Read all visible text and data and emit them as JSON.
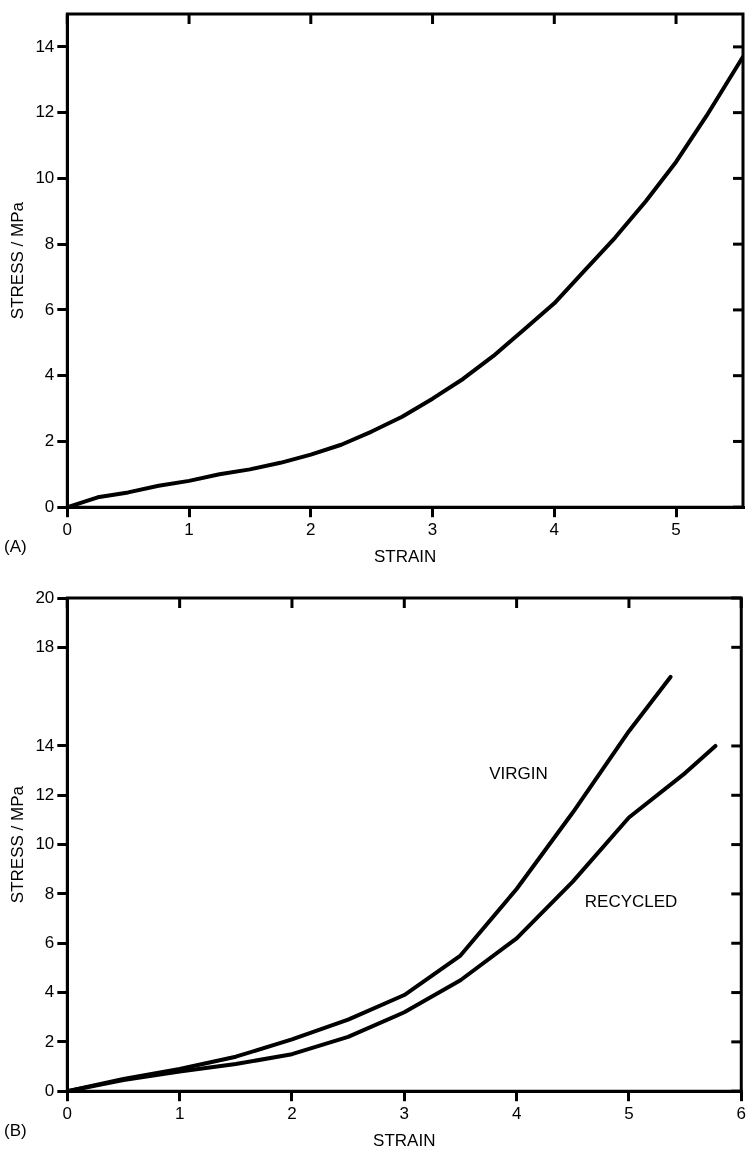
{
  "chart_data": [
    {
      "type": "line",
      "xlabel": "STRAIN",
      "ylabel": "STRESS / MPa",
      "annotations": [
        "(A)"
      ],
      "xlim": [
        0,
        5.55
      ],
      "ylim": [
        0,
        15
      ],
      "xticks": [
        0,
        1,
        2,
        3,
        4,
        5
      ],
      "yticks": [
        0,
        2,
        4,
        6,
        8,
        10,
        12,
        14
      ],
      "grid": false,
      "legend": false,
      "marker": "none",
      "line_style": "solid",
      "series": [
        {
          "color": "#000000",
          "x": [
            0,
            0.25,
            0.5,
            0.75,
            1,
            1.25,
            1.5,
            1.75,
            2,
            2.25,
            2.5,
            2.75,
            3,
            3.25,
            3.5,
            3.75,
            4,
            4.25,
            4.5,
            4.75,
            5,
            5.25,
            5.55
          ],
          "values": [
            0,
            0.3,
            0.45,
            0.65,
            0.8,
            1.0,
            1.15,
            1.35,
            1.6,
            1.9,
            2.3,
            2.75,
            3.3,
            3.9,
            4.6,
            5.4,
            6.2,
            7.2,
            8.2,
            9.3,
            10.5,
            11.9,
            13.7
          ]
        }
      ]
    },
    {
      "type": "line",
      "xlabel": "STRAIN",
      "ylabel": "STRESS / MPa",
      "annotations": [
        "(B)"
      ],
      "xlim": [
        0,
        6
      ],
      "ylim": [
        0,
        20
      ],
      "xticks": [
        0,
        1,
        2,
        3,
        4,
        5,
        6
      ],
      "yticks": [
        0,
        2,
        4,
        6,
        8,
        10,
        12,
        14,
        18,
        20
      ],
      "grid": false,
      "legend": false,
      "marker": "none",
      "line_style": "solid",
      "series": [
        {
          "name": "VIRGIN",
          "color": "#000000",
          "x": [
            0,
            0.5,
            1,
            1.5,
            2,
            2.5,
            3,
            3.5,
            4,
            4.5,
            5,
            5.37
          ],
          "values": [
            0,
            0.5,
            0.9,
            1.4,
            2.1,
            2.9,
            3.9,
            5.5,
            8.2,
            11.3,
            14.6,
            16.8
          ]
        },
        {
          "name": "RECYCLED",
          "color": "#000000",
          "x": [
            0,
            0.5,
            1,
            1.5,
            2,
            2.5,
            3,
            3.5,
            4,
            4.5,
            5,
            5.5,
            5.77
          ],
          "values": [
            0,
            0.45,
            0.8,
            1.1,
            1.5,
            2.2,
            3.2,
            4.5,
            6.2,
            8.5,
            11.1,
            12.9,
            14
          ]
        }
      ]
    }
  ]
}
